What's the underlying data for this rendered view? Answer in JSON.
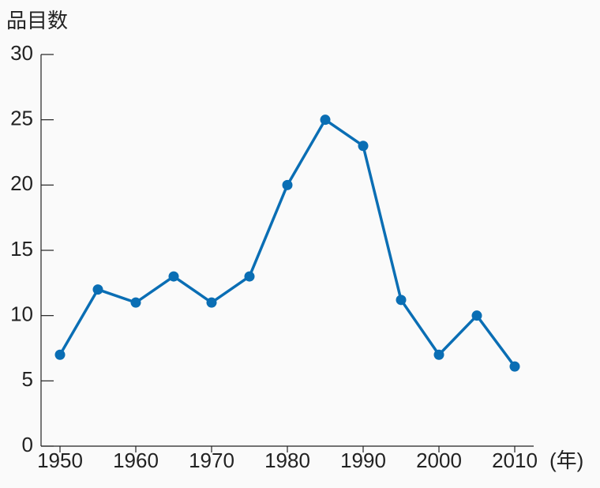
{
  "chart_data": {
    "type": "line",
    "y_label": "品目数",
    "x_label": "(年)",
    "x": [
      1950,
      1955,
      1960,
      1965,
      1970,
      1975,
      1980,
      1985,
      1990,
      1995,
      2000,
      2005,
      2010
    ],
    "values": [
      7,
      12,
      11,
      13,
      11,
      13,
      20,
      25,
      23,
      11.2,
      7,
      10,
      6.1
    ],
    "color": "#0a6eb4",
    "xlim": [
      1947.5,
      2012.5
    ],
    "xticks": [
      1950,
      1960,
      1970,
      1980,
      1990,
      2000,
      2010
    ],
    "ylim": [
      0,
      30
    ],
    "yticks": [
      0,
      5,
      10,
      15,
      20,
      25,
      30
    ]
  }
}
